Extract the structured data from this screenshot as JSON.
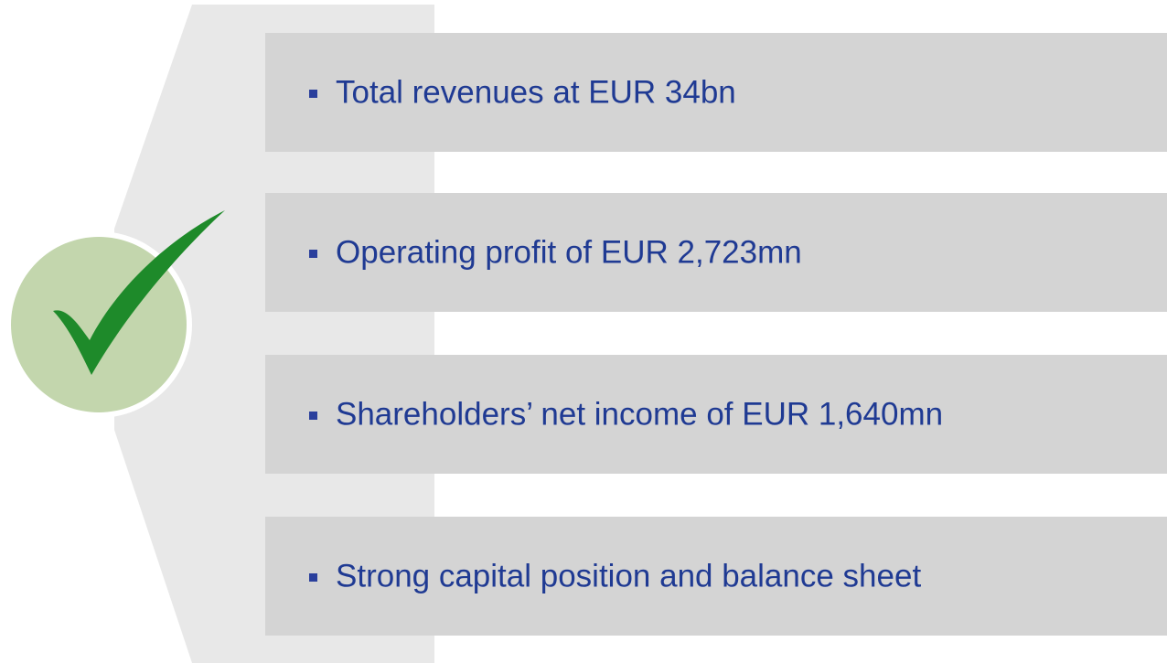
{
  "items": [
    "Total revenues at EUR 34bn",
    "Operating profit of EUR 2,723mn",
    "Shareholders’ net income of EUR 1,640mn",
    "Strong capital position and balance sheet"
  ]
}
